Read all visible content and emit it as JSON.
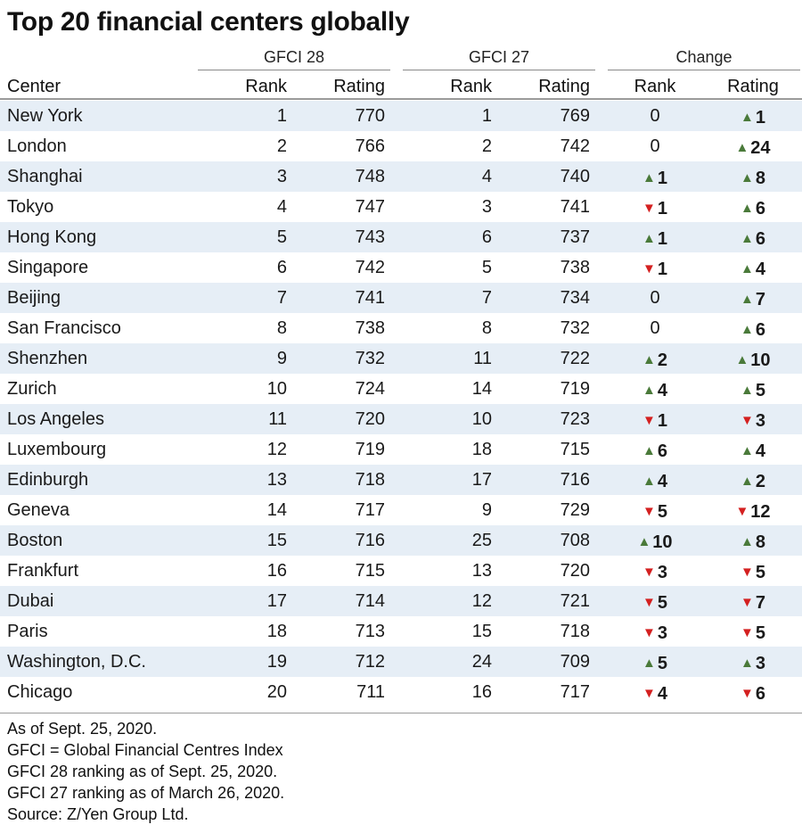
{
  "title": "Top 20 financial centers globally",
  "groups": {
    "gfci28": "GFCI 28",
    "gfci27": "GFCI 27",
    "change": "Change"
  },
  "headers": {
    "center": "Center",
    "rank28": "Rank",
    "rating28": "Rating",
    "rank27": "Rank",
    "rating27": "Rating",
    "change_rank": "Rank",
    "change_rating": "Rating"
  },
  "colors": {
    "row_alt": "#e6eef6",
    "arrow_up": "#4a7a3a",
    "arrow_down": "#d42020"
  },
  "chart_data": {
    "type": "table",
    "title": "Top 20 financial centers globally",
    "columns": [
      "Center",
      "GFCI 28 Rank",
      "GFCI 28 Rating",
      "GFCI 27 Rank",
      "GFCI 27 Rating",
      "Change Rank",
      "Change Rating"
    ],
    "rows": [
      {
        "center": "New York",
        "rank28": "1",
        "rating28": "770",
        "rank27": "1",
        "rating27": "769",
        "chg_rank": {
          "dir": "none",
          "val": "0"
        },
        "chg_rating": {
          "dir": "up",
          "val": "1"
        }
      },
      {
        "center": "London",
        "rank28": "2",
        "rating28": "766",
        "rank27": "2",
        "rating27": "742",
        "chg_rank": {
          "dir": "none",
          "val": "0"
        },
        "chg_rating": {
          "dir": "up",
          "val": "24"
        }
      },
      {
        "center": "Shanghai",
        "rank28": "3",
        "rating28": "748",
        "rank27": "4",
        "rating27": "740",
        "chg_rank": {
          "dir": "up",
          "val": "1"
        },
        "chg_rating": {
          "dir": "up",
          "val": "8"
        }
      },
      {
        "center": "Tokyo",
        "rank28": "4",
        "rating28": "747",
        "rank27": "3",
        "rating27": "741",
        "chg_rank": {
          "dir": "down",
          "val": "1"
        },
        "chg_rating": {
          "dir": "up",
          "val": "6"
        }
      },
      {
        "center": "Hong Kong",
        "rank28": "5",
        "rating28": "743",
        "rank27": "6",
        "rating27": "737",
        "chg_rank": {
          "dir": "up",
          "val": "1"
        },
        "chg_rating": {
          "dir": "up",
          "val": "6"
        }
      },
      {
        "center": "Singapore",
        "rank28": "6",
        "rating28": "742",
        "rank27": "5",
        "rating27": "738",
        "chg_rank": {
          "dir": "down",
          "val": "1"
        },
        "chg_rating": {
          "dir": "up",
          "val": "4"
        }
      },
      {
        "center": "Beijing",
        "rank28": "7",
        "rating28": "741",
        "rank27": "7",
        "rating27": "734",
        "chg_rank": {
          "dir": "none",
          "val": "0"
        },
        "chg_rating": {
          "dir": "up",
          "val": "7"
        }
      },
      {
        "center": "San Francisco",
        "rank28": "8",
        "rating28": "738",
        "rank27": "8",
        "rating27": "732",
        "chg_rank": {
          "dir": "none",
          "val": "0"
        },
        "chg_rating": {
          "dir": "up",
          "val": "6"
        }
      },
      {
        "center": "Shenzhen",
        "rank28": "9",
        "rating28": "732",
        "rank27": "11",
        "rating27": "722",
        "chg_rank": {
          "dir": "up",
          "val": "2"
        },
        "chg_rating": {
          "dir": "up",
          "val": "10"
        }
      },
      {
        "center": "Zurich",
        "rank28": "10",
        "rating28": "724",
        "rank27": "14",
        "rating27": "719",
        "chg_rank": {
          "dir": "up",
          "val": "4"
        },
        "chg_rating": {
          "dir": "up",
          "val": "5"
        }
      },
      {
        "center": "Los Angeles",
        "rank28": "11",
        "rating28": "720",
        "rank27": "10",
        "rating27": "723",
        "chg_rank": {
          "dir": "down",
          "val": "1"
        },
        "chg_rating": {
          "dir": "down",
          "val": "3"
        }
      },
      {
        "center": "Luxembourg",
        "rank28": "12",
        "rating28": "719",
        "rank27": "18",
        "rating27": "715",
        "chg_rank": {
          "dir": "up",
          "val": "6"
        },
        "chg_rating": {
          "dir": "up",
          "val": "4"
        }
      },
      {
        "center": "Edinburgh",
        "rank28": "13",
        "rating28": "718",
        "rank27": "17",
        "rating27": "716",
        "chg_rank": {
          "dir": "up",
          "val": "4"
        },
        "chg_rating": {
          "dir": "up",
          "val": "2"
        }
      },
      {
        "center": "Geneva",
        "rank28": "14",
        "rating28": "717",
        "rank27": "9",
        "rating27": "729",
        "chg_rank": {
          "dir": "down",
          "val": "5"
        },
        "chg_rating": {
          "dir": "down",
          "val": "12"
        }
      },
      {
        "center": "Boston",
        "rank28": "15",
        "rating28": "716",
        "rank27": "25",
        "rating27": "708",
        "chg_rank": {
          "dir": "up",
          "val": "10"
        },
        "chg_rating": {
          "dir": "up",
          "val": "8"
        }
      },
      {
        "center": "Frankfurt",
        "rank28": "16",
        "rating28": "715",
        "rank27": "13",
        "rating27": "720",
        "chg_rank": {
          "dir": "down",
          "val": "3"
        },
        "chg_rating": {
          "dir": "down",
          "val": "5"
        }
      },
      {
        "center": "Dubai",
        "rank28": "17",
        "rating28": "714",
        "rank27": "12",
        "rating27": "721",
        "chg_rank": {
          "dir": "down",
          "val": "5"
        },
        "chg_rating": {
          "dir": "down",
          "val": "7"
        }
      },
      {
        "center": "Paris",
        "rank28": "18",
        "rating28": "713",
        "rank27": "15",
        "rating27": "718",
        "chg_rank": {
          "dir": "down",
          "val": "3"
        },
        "chg_rating": {
          "dir": "down",
          "val": "5"
        }
      },
      {
        "center": "Washington, D.C.",
        "rank28": "19",
        "rating28": "712",
        "rank27": "24",
        "rating27": "709",
        "chg_rank": {
          "dir": "up",
          "val": "5"
        },
        "chg_rating": {
          "dir": "up",
          "val": "3"
        }
      },
      {
        "center": "Chicago",
        "rank28": "20",
        "rating28": "711",
        "rank27": "16",
        "rating27": "717",
        "chg_rank": {
          "dir": "down",
          "val": "4"
        },
        "chg_rating": {
          "dir": "down",
          "val": "6"
        }
      }
    ]
  },
  "notes": [
    "As of Sept. 25, 2020.",
    "GFCI = Global Financial Centres Index",
    "GFCI 28 ranking as of Sept. 25, 2020.",
    "GFCI 27 ranking as of March 26, 2020.",
    "Source: Z/Yen Group Ltd."
  ]
}
